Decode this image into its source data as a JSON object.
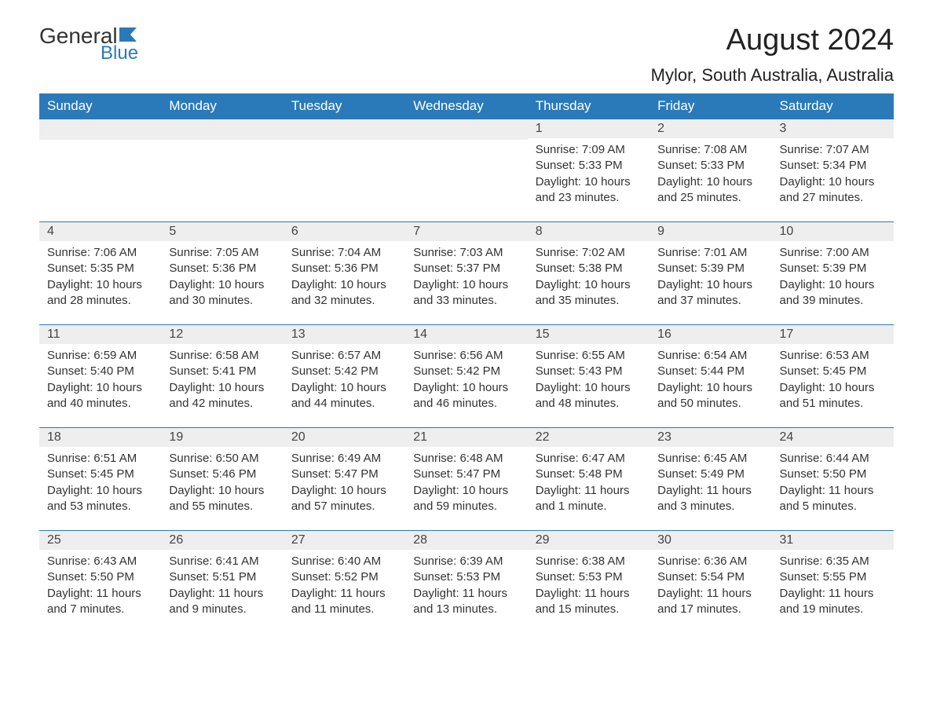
{
  "logo": {
    "text1": "General",
    "text2": "Blue"
  },
  "title": "August 2024",
  "location": "Mylor, South Australia, Australia",
  "colors": {
    "header_bg": "#2a7ab9",
    "header_text": "#ffffff",
    "daynum_bg": "#eeeeee",
    "border": "#2a7ab9",
    "body_text": "#333333",
    "page_bg": "#ffffff"
  },
  "layout": {
    "type": "calendar-month",
    "columns": 7,
    "rows": 5,
    "start_weekday": "Sunday",
    "first_day_column_index": 4
  },
  "weekdays": [
    "Sunday",
    "Monday",
    "Tuesday",
    "Wednesday",
    "Thursday",
    "Friday",
    "Saturday"
  ],
  "days": [
    {
      "n": 1,
      "sr": "7:09 AM",
      "ss": "5:33 PM",
      "dl": "10 hours and 23 minutes."
    },
    {
      "n": 2,
      "sr": "7:08 AM",
      "ss": "5:33 PM",
      "dl": "10 hours and 25 minutes."
    },
    {
      "n": 3,
      "sr": "7:07 AM",
      "ss": "5:34 PM",
      "dl": "10 hours and 27 minutes."
    },
    {
      "n": 4,
      "sr": "7:06 AM",
      "ss": "5:35 PM",
      "dl": "10 hours and 28 minutes."
    },
    {
      "n": 5,
      "sr": "7:05 AM",
      "ss": "5:36 PM",
      "dl": "10 hours and 30 minutes."
    },
    {
      "n": 6,
      "sr": "7:04 AM",
      "ss": "5:36 PM",
      "dl": "10 hours and 32 minutes."
    },
    {
      "n": 7,
      "sr": "7:03 AM",
      "ss": "5:37 PM",
      "dl": "10 hours and 33 minutes."
    },
    {
      "n": 8,
      "sr": "7:02 AM",
      "ss": "5:38 PM",
      "dl": "10 hours and 35 minutes."
    },
    {
      "n": 9,
      "sr": "7:01 AM",
      "ss": "5:39 PM",
      "dl": "10 hours and 37 minutes."
    },
    {
      "n": 10,
      "sr": "7:00 AM",
      "ss": "5:39 PM",
      "dl": "10 hours and 39 minutes."
    },
    {
      "n": 11,
      "sr": "6:59 AM",
      "ss": "5:40 PM",
      "dl": "10 hours and 40 minutes."
    },
    {
      "n": 12,
      "sr": "6:58 AM",
      "ss": "5:41 PM",
      "dl": "10 hours and 42 minutes."
    },
    {
      "n": 13,
      "sr": "6:57 AM",
      "ss": "5:42 PM",
      "dl": "10 hours and 44 minutes."
    },
    {
      "n": 14,
      "sr": "6:56 AM",
      "ss": "5:42 PM",
      "dl": "10 hours and 46 minutes."
    },
    {
      "n": 15,
      "sr": "6:55 AM",
      "ss": "5:43 PM",
      "dl": "10 hours and 48 minutes."
    },
    {
      "n": 16,
      "sr": "6:54 AM",
      "ss": "5:44 PM",
      "dl": "10 hours and 50 minutes."
    },
    {
      "n": 17,
      "sr": "6:53 AM",
      "ss": "5:45 PM",
      "dl": "10 hours and 51 minutes."
    },
    {
      "n": 18,
      "sr": "6:51 AM",
      "ss": "5:45 PM",
      "dl": "10 hours and 53 minutes."
    },
    {
      "n": 19,
      "sr": "6:50 AM",
      "ss": "5:46 PM",
      "dl": "10 hours and 55 minutes."
    },
    {
      "n": 20,
      "sr": "6:49 AM",
      "ss": "5:47 PM",
      "dl": "10 hours and 57 minutes."
    },
    {
      "n": 21,
      "sr": "6:48 AM",
      "ss": "5:47 PM",
      "dl": "10 hours and 59 minutes."
    },
    {
      "n": 22,
      "sr": "6:47 AM",
      "ss": "5:48 PM",
      "dl": "11 hours and 1 minute."
    },
    {
      "n": 23,
      "sr": "6:45 AM",
      "ss": "5:49 PM",
      "dl": "11 hours and 3 minutes."
    },
    {
      "n": 24,
      "sr": "6:44 AM",
      "ss": "5:50 PM",
      "dl": "11 hours and 5 minutes."
    },
    {
      "n": 25,
      "sr": "6:43 AM",
      "ss": "5:50 PM",
      "dl": "11 hours and 7 minutes."
    },
    {
      "n": 26,
      "sr": "6:41 AM",
      "ss": "5:51 PM",
      "dl": "11 hours and 9 minutes."
    },
    {
      "n": 27,
      "sr": "6:40 AM",
      "ss": "5:52 PM",
      "dl": "11 hours and 11 minutes."
    },
    {
      "n": 28,
      "sr": "6:39 AM",
      "ss": "5:53 PM",
      "dl": "11 hours and 13 minutes."
    },
    {
      "n": 29,
      "sr": "6:38 AM",
      "ss": "5:53 PM",
      "dl": "11 hours and 15 minutes."
    },
    {
      "n": 30,
      "sr": "6:36 AM",
      "ss": "5:54 PM",
      "dl": "11 hours and 17 minutes."
    },
    {
      "n": 31,
      "sr": "6:35 AM",
      "ss": "5:55 PM",
      "dl": "11 hours and 19 minutes."
    }
  ],
  "labels": {
    "sunrise": "Sunrise:",
    "sunset": "Sunset:",
    "daylight": "Daylight:"
  }
}
